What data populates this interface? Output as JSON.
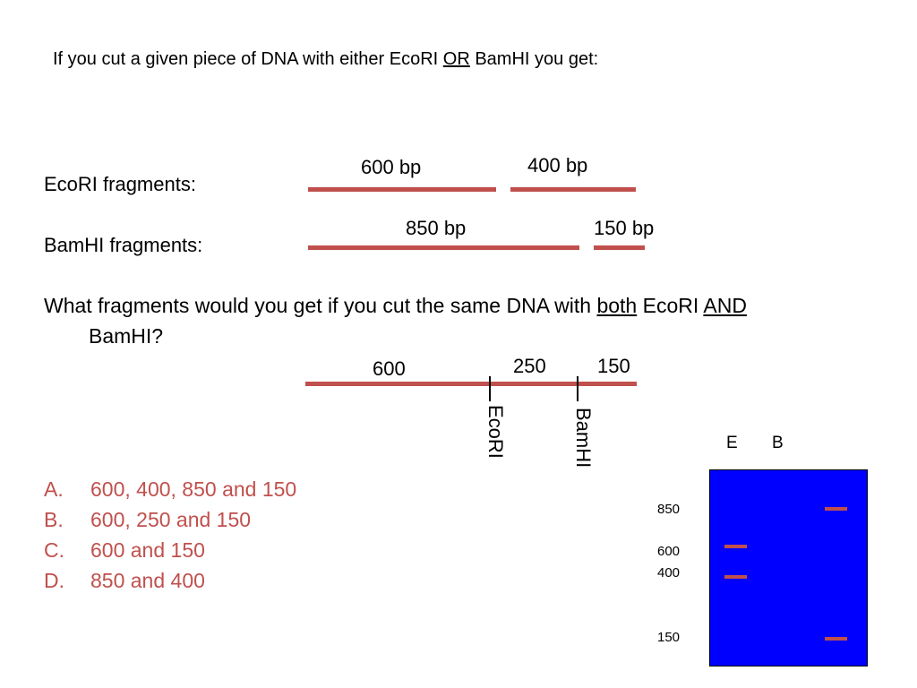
{
  "heading": {
    "part1": "If you cut a given piece of DNA with either EcoRI ",
    "or_word": "OR",
    "part2": " BamHI you get:"
  },
  "ecori": {
    "label": "EcoRI fragments:",
    "fragments": [
      "600 bp",
      "400 bp"
    ]
  },
  "bamhi": {
    "label": "BamHI fragments:",
    "fragments": [
      "850 bp",
      "150 bp"
    ]
  },
  "question": {
    "part1": "What fragments would you get if you cut the same DNA with ",
    "both_word": "both",
    "part2": " EcoRI ",
    "and_word": "AND",
    "line2": "BamHI?"
  },
  "double_digest": {
    "fragments": [
      "600",
      "250",
      "150"
    ],
    "sites": [
      "EcoRI",
      "BamHI"
    ]
  },
  "options": [
    {
      "letter": "A.",
      "text": "600, 400, 850 and 150"
    },
    {
      "letter": "B.",
      "text": "600, 250 and 150"
    },
    {
      "letter": "C.",
      "text": "600 and 150"
    },
    {
      "letter": "D.",
      "text": "850 and 400"
    }
  ],
  "gel": {
    "lanes": [
      "E",
      "B"
    ],
    "ladder": [
      "850",
      "600",
      "400",
      "150"
    ],
    "background_color": "#0000ff",
    "band_color": "#c0504d"
  },
  "colors": {
    "fragment_line": "#c0504d",
    "option_text": "#c0504d"
  }
}
